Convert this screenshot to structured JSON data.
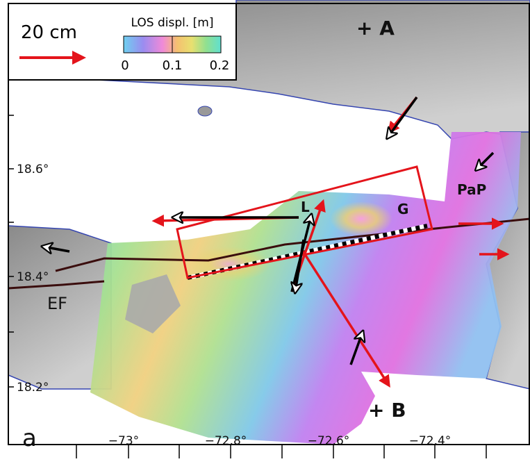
{
  "panel_label": "a",
  "scale_legend": {
    "label": "20 cm"
  },
  "colorbar": {
    "title": "LOS displ. [m]",
    "ticks": [
      "0",
      "0.1",
      "0.2"
    ]
  },
  "points": [
    {
      "label": "+ A"
    },
    {
      "label": "+ B"
    }
  ],
  "places": [
    {
      "label": "L"
    },
    {
      "label": "G"
    },
    {
      "label": "PaP"
    },
    {
      "label": "EF"
    }
  ],
  "axes": {
    "y_ticks": [
      "18.6°",
      "18.4°",
      "18.2°"
    ],
    "x_ticks": [
      "−73°",
      "−72.8°",
      "−72.6°",
      "−72.4°"
    ]
  }
}
